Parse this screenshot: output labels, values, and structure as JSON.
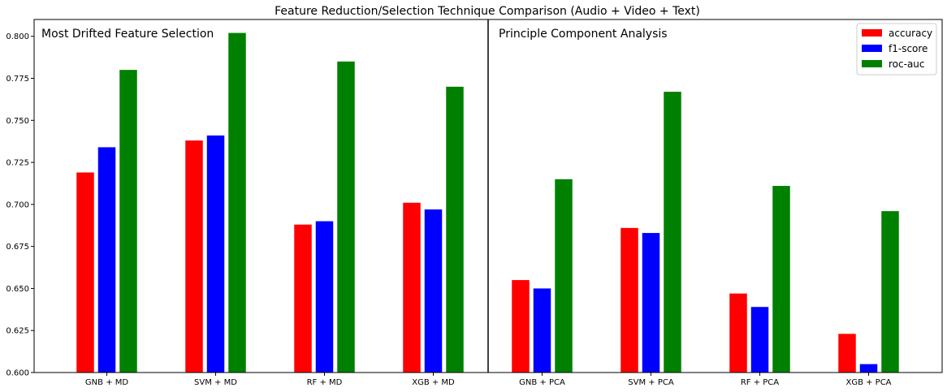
{
  "chart_data": {
    "type": "bar",
    "title": "Feature Reduction/Selection Technique Comparison (Audio + Video + Text)",
    "xlabel": "",
    "ylabel": "",
    "ylim": [
      0.6,
      0.81
    ],
    "yticks": [
      "0.600",
      "0.625",
      "0.650",
      "0.675",
      "0.700",
      "0.725",
      "0.750",
      "0.775",
      "0.800"
    ],
    "grid": false,
    "legend_position": "top-right",
    "panel_labels": [
      "Most Drifted Feature Selection",
      "Principle Component Analysis"
    ],
    "categories": [
      "GNB + MD",
      "SVM + MD",
      "RF + MD",
      "XGB + MD",
      "GNB + PCA",
      "SVM + PCA",
      "RF + PCA",
      "XGB + PCA"
    ],
    "series": [
      {
        "name": "accuracy",
        "color": "#ff0000",
        "values": [
          0.719,
          0.738,
          0.688,
          0.701,
          0.655,
          0.686,
          0.647,
          0.623
        ]
      },
      {
        "name": "f1-score",
        "color": "#0000ff",
        "values": [
          0.734,
          0.741,
          0.69,
          0.697,
          0.65,
          0.683,
          0.639,
          0.605
        ]
      },
      {
        "name": "roc-auc",
        "color": "#008000",
        "values": [
          0.78,
          0.802,
          0.785,
          0.77,
          0.715,
          0.767,
          0.711,
          0.696
        ]
      }
    ]
  }
}
